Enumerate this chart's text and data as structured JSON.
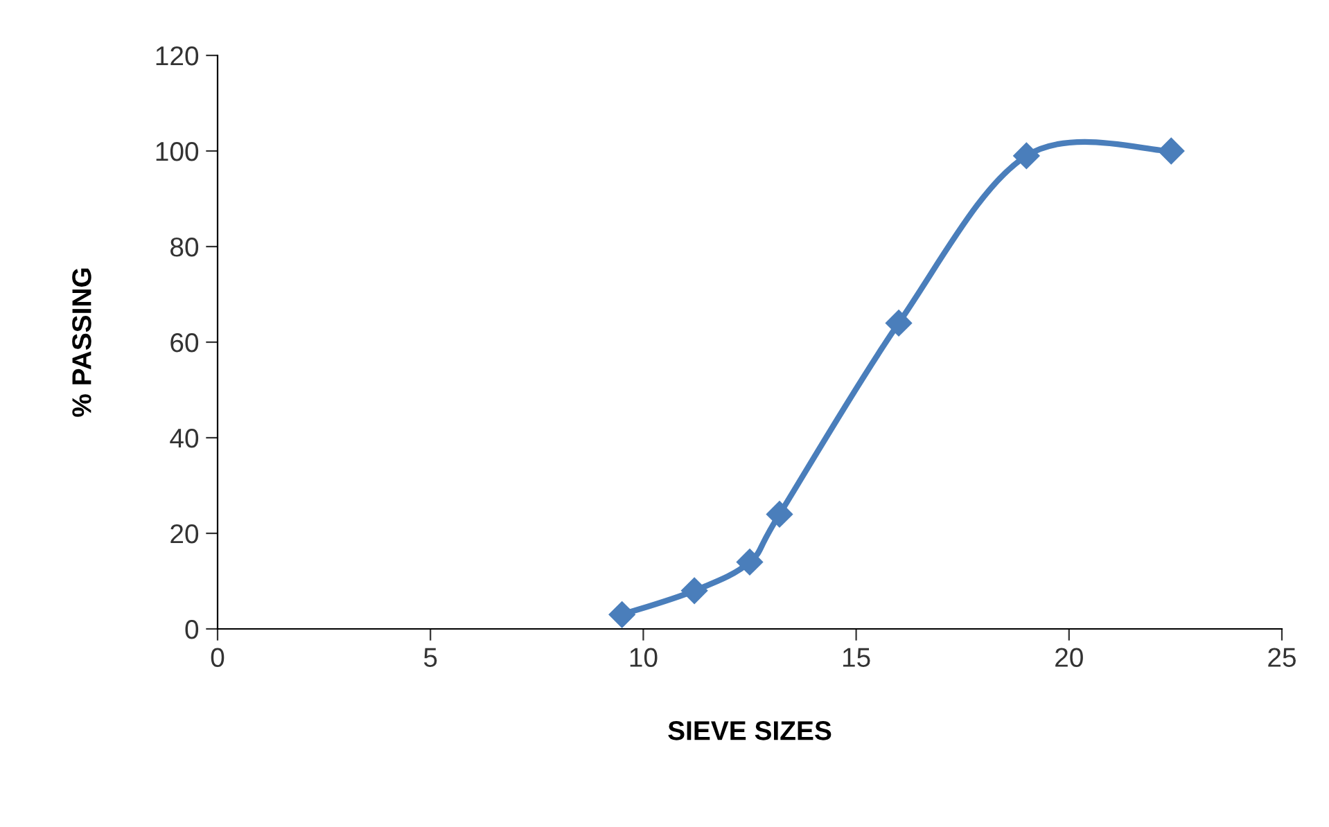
{
  "chart_data": {
    "type": "line",
    "xlabel": "SIEVE SIZES",
    "ylabel": "% PASSING",
    "x": [
      9.5,
      11.2,
      12.5,
      13.2,
      16,
      19,
      22.4
    ],
    "series": [
      {
        "color": "#4a7ebb",
        "values": [
          3,
          8,
          14,
          24,
          64,
          99,
          100
        ]
      }
    ],
    "xlim": [
      0,
      25
    ],
    "xticks": [
      0,
      5,
      10,
      15,
      20,
      25
    ],
    "ylim": [
      0,
      120
    ],
    "yticks": [
      0,
      20,
      40,
      60,
      80,
      100,
      120
    ],
    "grid": false,
    "marker": "diamond",
    "line_style": "solid"
  }
}
